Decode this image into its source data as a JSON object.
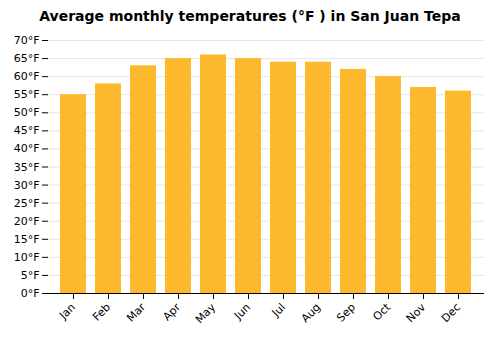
{
  "chart_data": {
    "type": "bar",
    "title": "Average monthly temperatures (°F ) in San Juan Tepa",
    "categories": [
      "Jan",
      "Feb",
      "Mar",
      "Apr",
      "May",
      "Jun",
      "Jul",
      "Aug",
      "Sep",
      "Oct",
      "Nov",
      "Dec"
    ],
    "values": [
      55,
      58,
      63,
      65,
      66,
      65,
      64,
      64,
      62,
      60,
      57,
      56
    ],
    "color": "#FDB92E",
    "ylim": [
      0,
      70
    ],
    "yticks": [
      {
        "value": 0,
        "label": "0°F"
      },
      {
        "value": 5,
        "label": "5°F"
      },
      {
        "value": 10,
        "label": "10°F"
      },
      {
        "value": 15,
        "label": "15°F"
      },
      {
        "value": 20,
        "label": "20°F"
      },
      {
        "value": 25,
        "label": "25°F"
      },
      {
        "value": 30,
        "label": "30°F"
      },
      {
        "value": 35,
        "label": "35°F"
      },
      {
        "value": 40,
        "label": "40°F"
      },
      {
        "value": 45,
        "label": "45°F"
      },
      {
        "value": 50,
        "label": "50°F"
      },
      {
        "value": 55,
        "label": "55°F"
      },
      {
        "value": 60,
        "label": "60°F"
      },
      {
        "value": 65,
        "label": "65°F"
      },
      {
        "value": 70,
        "label": "70°F"
      }
    ],
    "grid": true
  }
}
